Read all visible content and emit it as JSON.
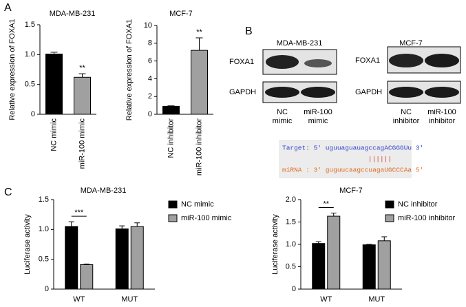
{
  "panel_labels": [
    "A",
    "B",
    "C"
  ],
  "chart_data": [
    {
      "type": "bar",
      "title": "MDA-MB-231",
      "y_label": "Relative expression of FOXA1",
      "categories": [
        "NC mimic",
        "miR-100 mimic"
      ],
      "values": [
        1.01,
        0.62
      ],
      "errors": [
        0.03,
        0.06
      ],
      "colors": [
        "#000000",
        "#a0a0a0"
      ],
      "annotation": "**",
      "ylim": [
        0,
        1.5
      ],
      "yticks": [
        0,
        0.5,
        {
          "value": 1,
          "label": "1.0"
        },
        {
          "value": 1.5,
          "label": "1.5"
        }
      ]
    },
    {
      "type": "bar",
      "title": "MCF-7",
      "y_label": "Relative expression of FOXA1",
      "categories": [
        "NC inhibitor",
        "miR-100 inhibitor"
      ],
      "values": [
        0.9,
        7.2
      ],
      "errors": [
        0.05,
        1.4
      ],
      "colors": [
        "#000000",
        "#a0a0a0"
      ],
      "annotation": "**",
      "ylim": [
        0,
        10
      ],
      "yticks": [
        0,
        2,
        4,
        6,
        8,
        10
      ]
    },
    {
      "type": "grouped_bar",
      "title": "MDA-MB-231",
      "y_label": "Luciferase activity",
      "categories": [
        "WT",
        "MUT"
      ],
      "annotation": "***",
      "series": [
        {
          "name": "NC mimic",
          "color": "#000000",
          "values": [
            1.05,
            1.01
          ],
          "errors": [
            0.08,
            0.05
          ]
        },
        {
          "name": "miR-100 mimic",
          "color": "#a0a0a0",
          "values": [
            0.41,
            1.05
          ],
          "errors": [
            0.01,
            0.06
          ]
        }
      ],
      "ylim": [
        0,
        1.5
      ],
      "yticks": [
        0,
        0.5,
        {
          "value": 1,
          "label": "1.0"
        },
        {
          "value": 1.5,
          "label": "1.5"
        }
      ]
    },
    {
      "type": "grouped_bar",
      "title": "MCF-7",
      "y_label": "Luciferase activity",
      "categories": [
        "WT",
        "MUT"
      ],
      "annotation": "**",
      "series": [
        {
          "name": "NC inhibitor",
          "color": "#000000",
          "values": [
            1.02,
            0.99
          ],
          "errors": [
            0.04,
            0.01
          ]
        },
        {
          "name": "miR-100 inhibitor",
          "color": "#a0a0a0",
          "values": [
            1.63,
            1.08
          ],
          "errors": [
            0.07,
            0.09
          ]
        }
      ],
      "ylim": [
        0,
        2
      ],
      "yticks": [
        0,
        0.5,
        {
          "value": 1,
          "label": "1.0"
        },
        {
          "value": 1.5,
          "label": "1.5"
        },
        {
          "value": 2,
          "label": "2.0"
        }
      ]
    }
  ],
  "blot": {
    "titles": [
      "MDA-MB-231",
      "MCF-7"
    ],
    "proteins": [
      "FOXA1",
      "GAPDH"
    ],
    "lanes": [
      [
        "NC",
        "mimic"
      ],
      [
        "miR-100",
        "mimic"
      ],
      [
        "NC",
        "inhibitor"
      ],
      [
        "miR-100",
        "inhibitor"
      ]
    ]
  },
  "sequence": {
    "target": "Target: 5' uguuaguauagccagACGGGUu 3'",
    "pairs": "||||||",
    "mirna": "miRNA : 3' guguucaagccuagaUGCCCAa 5'"
  }
}
